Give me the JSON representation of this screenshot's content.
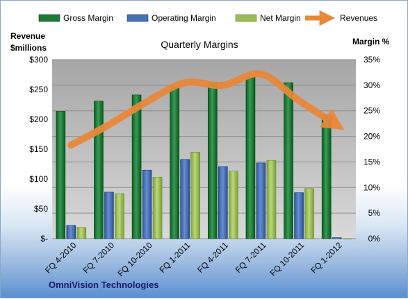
{
  "chart_data": {
    "type": "bar",
    "title": "Quarterly Margins",
    "categories": [
      "FQ 4-2010",
      "FQ 7-2010",
      "FQ 10-2010",
      "FQ 1-2011",
      "FQ 4-2011",
      "FQ 7-2011",
      "FQ 10-2011",
      "FQ 1-2012"
    ],
    "y_left_label": [
      "Revenue",
      "$millions"
    ],
    "y_right_label": "Margin %",
    "y_left_ticks": [
      "$-",
      "$50",
      "$100",
      "$150",
      "$200",
      "$250",
      "$300"
    ],
    "y_right_ticks": [
      "0%",
      "5%",
      "10%",
      "15%",
      "20%",
      "25%",
      "30%",
      "35%"
    ],
    "y_right_lim": [
      0,
      35
    ],
    "series": [
      {
        "name": "Gross Margin",
        "axis": "right",
        "color": "#1f7a3a",
        "values": [
          24.9,
          26.9,
          28.1,
          29.6,
          30.6,
          31.6,
          30.5,
          24.2
        ]
      },
      {
        "name": "Operating Margin",
        "axis": "right",
        "color": "#4a6fb3",
        "values": [
          2.6,
          9.1,
          13.4,
          15.5,
          14.1,
          14.8,
          9.0,
          0.2
        ]
      },
      {
        "name": "Net Margin",
        "axis": "right",
        "color": "#9bbb59",
        "values": [
          2.2,
          8.8,
          12.0,
          16.9,
          13.2,
          15.3,
          9.8,
          0.0
        ]
      },
      {
        "name": "Revenues",
        "axis": "right",
        "type": "line",
        "color": "#e8883a",
        "values": [
          18.3,
          22.3,
          26.8,
          30.5,
          30.0,
          32.2,
          27.0,
          22.2
        ]
      }
    ],
    "grid": true,
    "legend_position": "top"
  },
  "footer": {
    "company": "OmniVision Technologies"
  }
}
